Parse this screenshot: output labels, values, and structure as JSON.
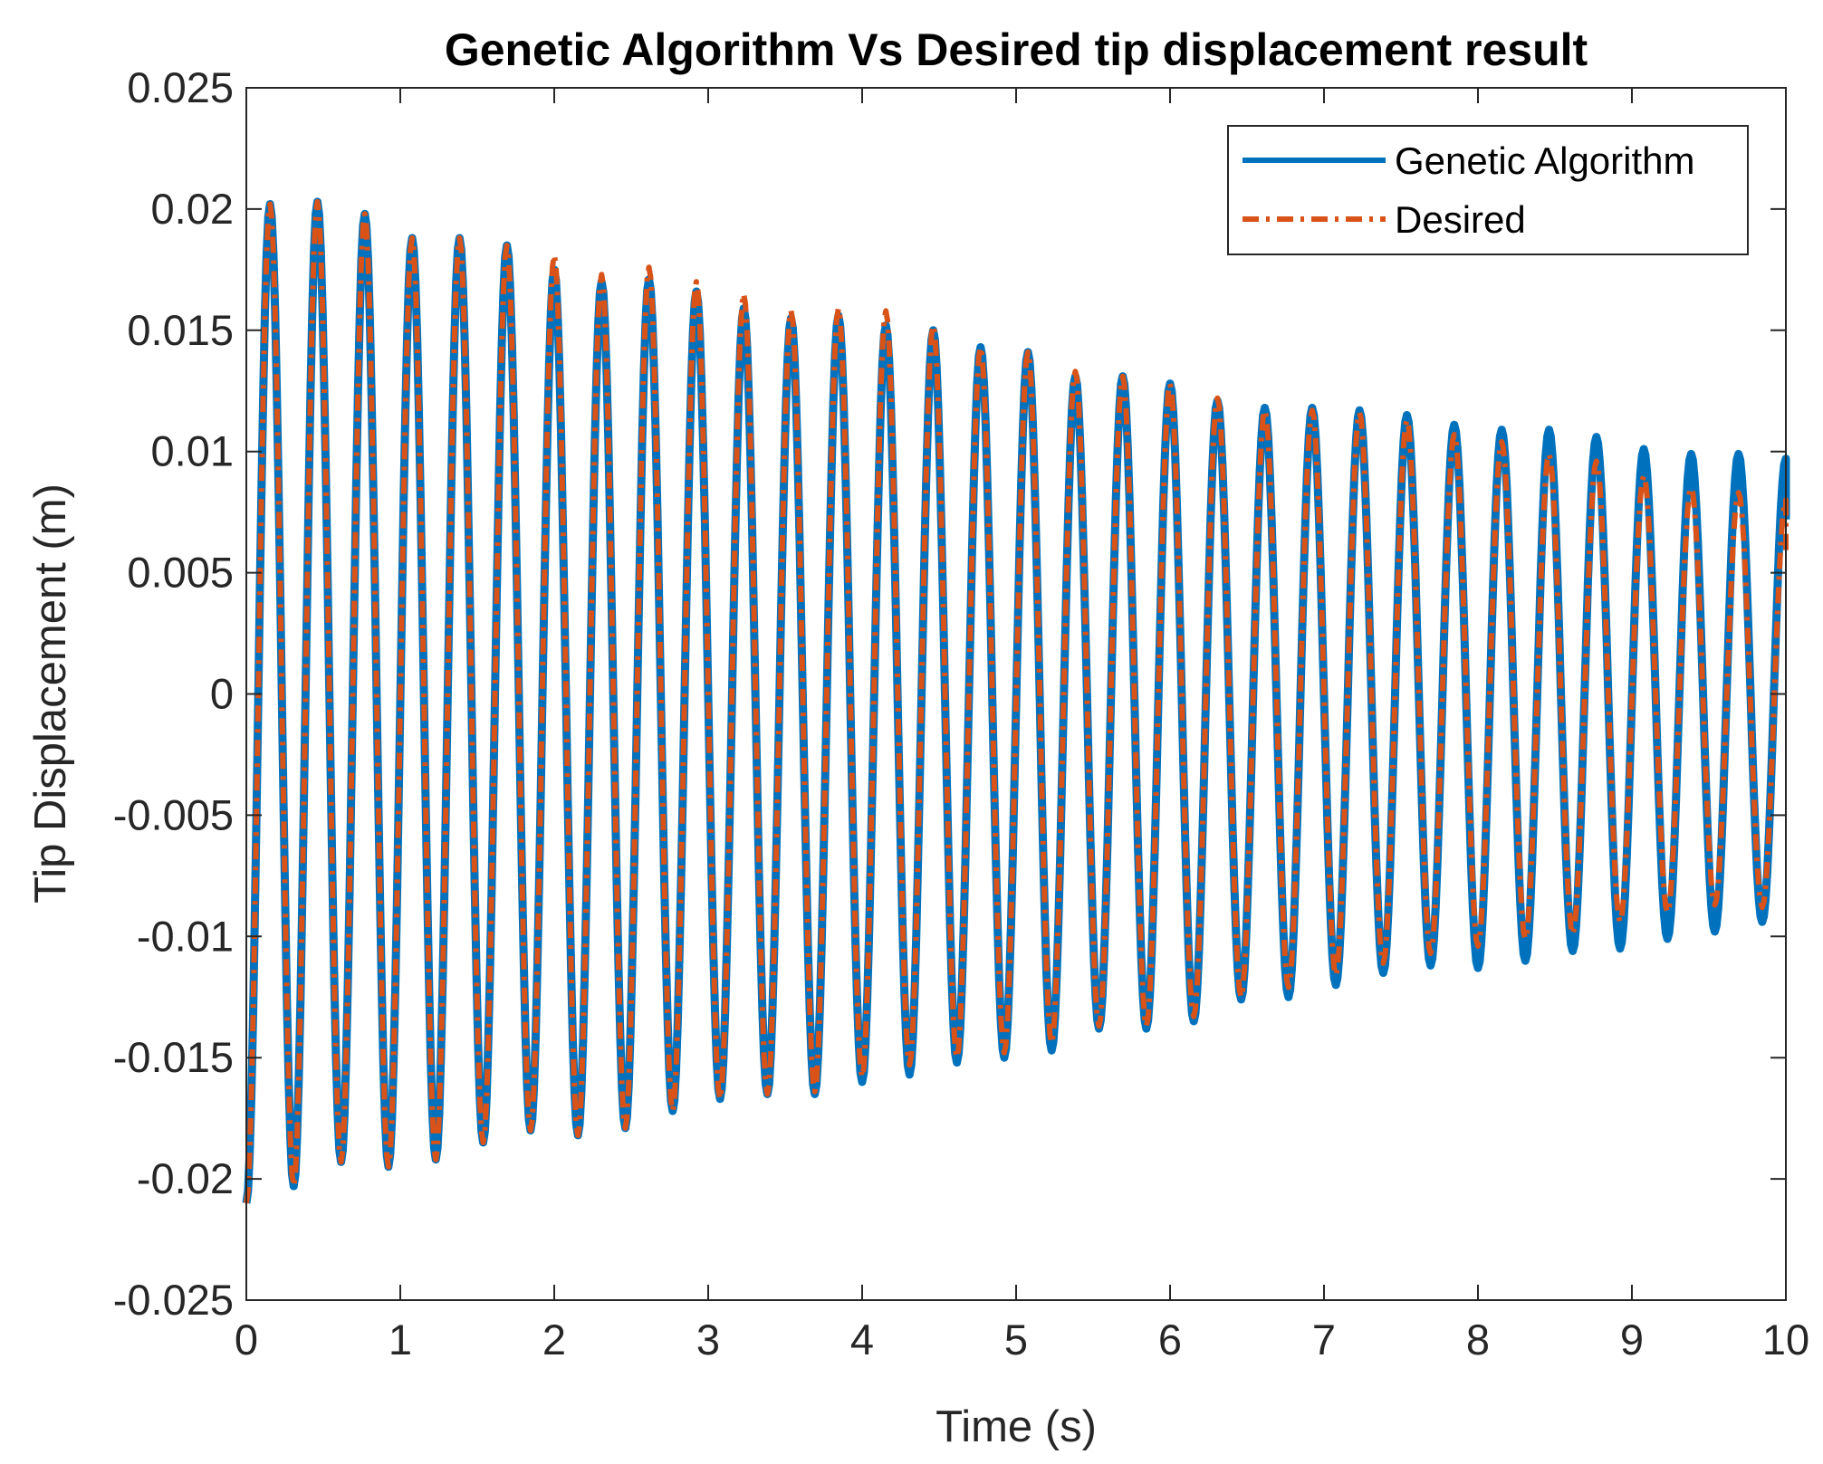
{
  "chart_data": {
    "type": "line",
    "title": "Genetic Algorithm Vs Desired tip displacement result",
    "xlabel": "Time (s)",
    "ylabel": "Tip Displacement (m)",
    "xlim": [
      0,
      10
    ],
    "ylim": [
      -0.025,
      0.025
    ],
    "xticks": [
      0,
      1,
      2,
      3,
      4,
      5,
      6,
      7,
      8,
      9,
      10
    ],
    "xtick_labels": [
      "0",
      "1",
      "2",
      "3",
      "4",
      "5",
      "6",
      "7",
      "8",
      "9",
      "10"
    ],
    "yticks": [
      -0.025,
      -0.02,
      -0.015,
      -0.01,
      -0.005,
      0,
      0.005,
      0.01,
      0.015,
      0.02,
      0.025
    ],
    "ytick_labels": [
      "-0.025",
      "-0.02",
      "-0.015",
      "-0.01",
      "-0.005",
      "0",
      "0.005",
      "0.01",
      "0.015",
      "0.02",
      "0.025"
    ],
    "grid": false,
    "legend_position": "top-right",
    "series": [
      {
        "name": "Genetic Algorithm",
        "color": "#0072BD",
        "style": "solid",
        "initial_value": -0.021,
        "cycle_peaks": [
          0.0202,
          0.0203,
          0.0198,
          0.0188,
          0.0188,
          0.0185,
          0.0175,
          0.017,
          0.0171,
          0.0166,
          0.0159,
          0.0155,
          0.0156,
          0.0152,
          0.015,
          0.0143,
          0.0141,
          0.0131,
          0.0131,
          0.0128,
          0.0121,
          0.0118,
          0.0118,
          0.0117,
          0.0115,
          0.0111,
          0.0109,
          0.0109,
          0.0106,
          0.0101,
          0.0099,
          0.0099,
          0.0097
        ],
        "cycle_troughs": [
          -0.0203,
          -0.0193,
          -0.0195,
          -0.0192,
          -0.0185,
          -0.018,
          -0.0182,
          -0.0179,
          -0.0172,
          -0.0167,
          -0.0165,
          -0.0165,
          -0.016,
          -0.0157,
          -0.0152,
          -0.015,
          -0.0147,
          -0.0138,
          -0.0138,
          -0.0135,
          -0.0126,
          -0.0125,
          -0.012,
          -0.0115,
          -0.0112,
          -0.0113,
          -0.011,
          -0.0106,
          -0.0105,
          -0.0101,
          -0.0098,
          -0.0094
        ],
        "end_value": 0.0072
      },
      {
        "name": "Desired",
        "color": "#D95319",
        "style": "dash-dot",
        "initial_value": -0.021,
        "cycle_peaks": [
          0.0202,
          0.0203,
          0.0198,
          0.0188,
          0.0188,
          0.0185,
          0.0181,
          0.0173,
          0.0176,
          0.017,
          0.0165,
          0.0158,
          0.0159,
          0.0158,
          0.0152,
          0.0143,
          0.0141,
          0.0133,
          0.0131,
          0.0128,
          0.0122,
          0.0117,
          0.0117,
          0.0116,
          0.0113,
          0.0107,
          0.0104,
          0.0099,
          0.0096,
          0.009,
          0.0085,
          0.0083,
          0.008
        ],
        "cycle_troughs": [
          -0.0203,
          -0.0193,
          -0.0195,
          -0.0192,
          -0.0185,
          -0.018,
          -0.0182,
          -0.0179,
          -0.0172,
          -0.0167,
          -0.0165,
          -0.0164,
          -0.0158,
          -0.0153,
          -0.015,
          -0.0148,
          -0.0144,
          -0.0137,
          -0.0137,
          -0.0133,
          -0.0125,
          -0.0121,
          -0.0116,
          -0.0111,
          -0.0107,
          -0.0104,
          -0.0101,
          -0.0099,
          -0.0094,
          -0.009,
          -0.0087,
          -0.0088
        ],
        "end_value": 0.0058
      }
    ]
  }
}
